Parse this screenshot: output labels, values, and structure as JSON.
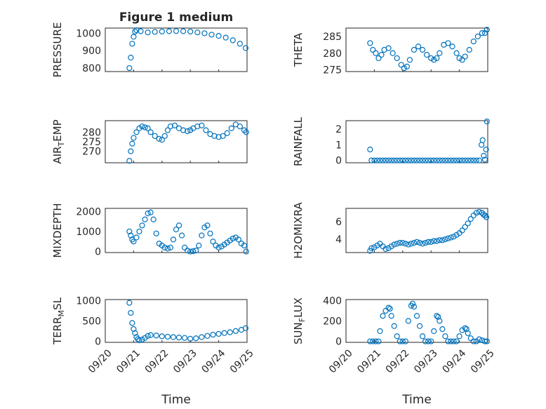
{
  "figure": {
    "title": "Figure 1 medium",
    "xlabel": "Time",
    "xticklabels": [
      "09/20",
      "09/21",
      "09/22",
      "09/23",
      "09/24",
      "09/25"
    ],
    "marker_color": "#0072bd"
  },
  "chart_data": [
    {
      "type": "scatter",
      "name": "pressure",
      "title": "Figure 1 medium",
      "ylabel": "PRESSURE",
      "ylim": [
        780,
        1030
      ],
      "yticks": [
        800,
        900,
        1000
      ],
      "xlim": [
        0,
        5
      ],
      "x": [
        0.85,
        0.9,
        0.95,
        1.0,
        1.05,
        1.1,
        1.25,
        1.5,
        1.75,
        2.0,
        2.25,
        2.5,
        2.75,
        3.0,
        3.25,
        3.5,
        3.75,
        4.0,
        4.25,
        4.5,
        4.75,
        4.95
      ],
      "y": [
        800,
        860,
        940,
        980,
        1010,
        1018,
        1012,
        1005,
        1008,
        1010,
        1012,
        1013,
        1012,
        1010,
        1005,
        1000,
        992,
        985,
        975,
        960,
        940,
        915
      ]
    },
    {
      "type": "scatter",
      "name": "theta",
      "ylabel": "THETA",
      "ylim": [
        274.5,
        287.5
      ],
      "yticks": [
        275,
        280,
        285
      ],
      "xlim": [
        0,
        5
      ],
      "x": [
        0.85,
        0.95,
        1.05,
        1.15,
        1.25,
        1.35,
        1.5,
        1.65,
        1.8,
        1.95,
        2.05,
        2.15,
        2.25,
        2.4,
        2.55,
        2.7,
        2.85,
        3.0,
        3.1,
        3.2,
        3.3,
        3.45,
        3.6,
        3.75,
        3.9,
        4.0,
        4.1,
        4.2,
        4.35,
        4.5,
        4.65,
        4.8,
        4.9,
        4.97
      ],
      "y": [
        283,
        281,
        280,
        278.5,
        279.5,
        281,
        281.5,
        280,
        278.5,
        276.5,
        275.5,
        276,
        278,
        281,
        282,
        281,
        279.5,
        278.5,
        278,
        278.5,
        280,
        282.5,
        283,
        282,
        280,
        278.5,
        278,
        279,
        281,
        283.5,
        285,
        286,
        286,
        287
      ]
    },
    {
      "type": "scatter",
      "name": "air_temp",
      "ylabel": "AIR",
      "ylabel_sub": "T",
      "ylabel_suffix": "EMP",
      "ylim": [
        264,
        286
      ],
      "yticks": [
        270,
        275,
        280
      ],
      "xlim": [
        0,
        5
      ],
      "x": [
        0.85,
        0.9,
        0.95,
        1.0,
        1.1,
        1.2,
        1.3,
        1.4,
        1.5,
        1.6,
        1.75,
        1.9,
        2.0,
        2.1,
        2.2,
        2.3,
        2.45,
        2.6,
        2.75,
        2.9,
        3.0,
        3.1,
        3.25,
        3.4,
        3.55,
        3.7,
        3.85,
        4.0,
        4.15,
        4.3,
        4.45,
        4.6,
        4.75,
        4.9,
        4.97
      ],
      "y": [
        265,
        270,
        274,
        277,
        280,
        282,
        283,
        282.5,
        282,
        280,
        278,
        276.5,
        276,
        278,
        281,
        283,
        283.5,
        282,
        281,
        280.5,
        281,
        282,
        283,
        283.5,
        281,
        279,
        278,
        277.5,
        278,
        279.5,
        282,
        284,
        283,
        281,
        280
      ]
    },
    {
      "type": "scatter",
      "name": "rainfall",
      "ylabel": "RAINFALL",
      "ylim": [
        -0.15,
        2.55
      ],
      "yticks": [
        0,
        1,
        2
      ],
      "xlim": [
        0,
        5
      ],
      "x": [
        0.85,
        0.9,
        1.0,
        1.1,
        1.2,
        1.3,
        1.4,
        1.5,
        1.6,
        1.7,
        1.8,
        1.9,
        2.0,
        2.1,
        2.2,
        2.3,
        2.4,
        2.5,
        2.6,
        2.7,
        2.8,
        2.9,
        3.0,
        3.1,
        3.2,
        3.3,
        3.4,
        3.5,
        3.6,
        3.7,
        3.8,
        3.9,
        4.0,
        4.1,
        4.2,
        4.3,
        4.4,
        4.5,
        4.6,
        4.7,
        4.78,
        4.82,
        4.86,
        4.9,
        4.94,
        4.97
      ],
      "y": [
        0.7,
        0,
        0,
        0,
        0,
        0,
        0,
        0,
        0,
        0,
        0,
        0,
        0,
        0,
        0,
        0,
        0,
        0,
        0,
        0,
        0,
        0,
        0,
        0,
        0,
        0,
        0,
        0,
        0,
        0,
        0,
        0,
        0,
        0,
        0,
        0,
        0,
        0,
        0,
        0,
        1.0,
        1.3,
        0.3,
        0.05,
        0.7,
        2.5
      ]
    },
    {
      "type": "scatter",
      "name": "mixdepth",
      "ylabel": "MIXDEPTH",
      "ylim": [
        -50,
        2150
      ],
      "yticks": [
        0,
        1000,
        2000
      ],
      "xlim": [
        0,
        5
      ],
      "x": [
        0.85,
        0.9,
        0.95,
        1.0,
        1.1,
        1.2,
        1.3,
        1.4,
        1.5,
        1.6,
        1.7,
        1.8,
        1.9,
        2.0,
        2.1,
        2.2,
        2.3,
        2.4,
        2.5,
        2.6,
        2.7,
        2.8,
        2.9,
        3.0,
        3.1,
        3.2,
        3.3,
        3.4,
        3.5,
        3.6,
        3.7,
        3.8,
        3.9,
        4.0,
        4.1,
        4.2,
        4.3,
        4.4,
        4.5,
        4.6,
        4.7,
        4.8,
        4.9,
        4.97
      ],
      "y": [
        1000,
        800,
        600,
        500,
        700,
        1000,
        1300,
        1600,
        1900,
        1950,
        1600,
        900,
        400,
        300,
        200,
        150,
        200,
        600,
        1100,
        1300,
        800,
        200,
        50,
        0,
        20,
        50,
        300,
        800,
        1200,
        1300,
        900,
        500,
        300,
        200,
        250,
        350,
        450,
        550,
        650,
        700,
        600,
        400,
        300,
        0
      ]
    },
    {
      "type": "scatter",
      "name": "h2omixra",
      "ylabel": "H2OMIXRA",
      "ylim": [
        2.5,
        7.5
      ],
      "yticks": [
        4,
        6
      ],
      "xlim": [
        0,
        5
      ],
      "x": [
        0.85,
        0.9,
        1.0,
        1.1,
        1.2,
        1.3,
        1.4,
        1.5,
        1.6,
        1.7,
        1.8,
        1.9,
        2.0,
        2.1,
        2.2,
        2.3,
        2.4,
        2.5,
        2.6,
        2.7,
        2.8,
        2.9,
        3.0,
        3.1,
        3.2,
        3.3,
        3.4,
        3.5,
        3.6,
        3.7,
        3.8,
        3.9,
        4.0,
        4.1,
        4.2,
        4.3,
        4.4,
        4.5,
        4.6,
        4.7,
        4.8,
        4.85,
        4.9,
        4.95
      ],
      "y": [
        2.7,
        3.0,
        3.1,
        3.3,
        3.5,
        3.2,
        2.9,
        3.0,
        3.2,
        3.4,
        3.5,
        3.6,
        3.6,
        3.5,
        3.4,
        3.5,
        3.6,
        3.7,
        3.6,
        3.5,
        3.6,
        3.7,
        3.7,
        3.8,
        3.8,
        3.9,
        3.9,
        4.0,
        4.1,
        4.2,
        4.3,
        4.5,
        4.7,
        5.0,
        5.4,
        5.8,
        6.3,
        6.7,
        7.0,
        7.1,
        7.0,
        6.8,
        6.7,
        6.5
      ]
    },
    {
      "type": "scatter",
      "name": "terr_msl",
      "ylabel": "TERR",
      "ylabel_sub": "M",
      "ylabel_suffix": "SL",
      "ylim": [
        -30,
        1030
      ],
      "yticks": [
        0,
        500,
        1000
      ],
      "xlim": [
        0,
        5
      ],
      "x": [
        0.85,
        0.9,
        0.95,
        1.0,
        1.05,
        1.1,
        1.15,
        1.2,
        1.3,
        1.4,
        1.5,
        1.6,
        1.8,
        2.0,
        2.2,
        2.4,
        2.6,
        2.8,
        3.0,
        3.2,
        3.4,
        3.6,
        3.8,
        4.0,
        4.2,
        4.4,
        4.6,
        4.8,
        4.95
      ],
      "y": [
        950,
        700,
        450,
        300,
        200,
        100,
        50,
        20,
        40,
        80,
        130,
        150,
        140,
        120,
        110,
        100,
        90,
        80,
        60,
        70,
        100,
        130,
        160,
        180,
        200,
        220,
        250,
        280,
        320
      ]
    },
    {
      "type": "scatter",
      "name": "sun_flux",
      "ylabel": "SUN",
      "ylabel_sub": "F",
      "ylabel_suffix": "LUX",
      "ylim": [
        -10,
        410
      ],
      "yticks": [
        0,
        200,
        400
      ],
      "xlim": [
        0,
        5
      ],
      "x": [
        0.85,
        0.95,
        1.05,
        1.15,
        1.2,
        1.3,
        1.4,
        1.5,
        1.55,
        1.6,
        1.7,
        1.8,
        1.9,
        2.0,
        2.1,
        2.2,
        2.3,
        2.35,
        2.4,
        2.5,
        2.6,
        2.7,
        2.8,
        2.9,
        3.0,
        3.1,
        3.2,
        3.25,
        3.3,
        3.4,
        3.5,
        3.6,
        3.7,
        3.8,
        3.9,
        4.0,
        4.1,
        4.2,
        4.25,
        4.3,
        4.4,
        4.5,
        4.6,
        4.7,
        4.8,
        4.9,
        4.97
      ],
      "y": [
        0,
        0,
        0,
        0,
        100,
        250,
        300,
        330,
        320,
        250,
        150,
        50,
        0,
        0,
        0,
        200,
        350,
        370,
        340,
        250,
        150,
        50,
        0,
        0,
        0,
        100,
        250,
        240,
        200,
        120,
        50,
        0,
        0,
        0,
        0,
        50,
        110,
        130,
        120,
        80,
        30,
        0,
        0,
        20,
        10,
        0,
        0
      ]
    }
  ]
}
